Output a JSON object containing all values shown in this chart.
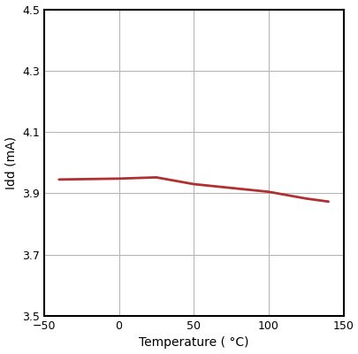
{
  "x": [
    -40,
    0,
    25,
    50,
    100,
    125,
    140
  ],
  "y": [
    3.945,
    3.948,
    3.952,
    3.93,
    3.905,
    3.883,
    3.873
  ],
  "line_color": "#b03030",
  "line_width": 2.0,
  "xlabel": "Temperature ( °C)",
  "ylabel": "Idd (mA)",
  "xlim": [
    -50,
    150
  ],
  "ylim": [
    3.5,
    4.5
  ],
  "xticks": [
    -50,
    0,
    50,
    100,
    150
  ],
  "yticks": [
    3.5,
    3.7,
    3.9,
    4.1,
    4.3,
    4.5
  ],
  "grid_color": "#b0b0b0",
  "grid_linewidth": 0.7,
  "spine_color": "#000000",
  "spine_linewidth": 1.5,
  "background_color": "#ffffff",
  "xlabel_fontsize": 10,
  "ylabel_fontsize": 10,
  "tick_fontsize": 9
}
